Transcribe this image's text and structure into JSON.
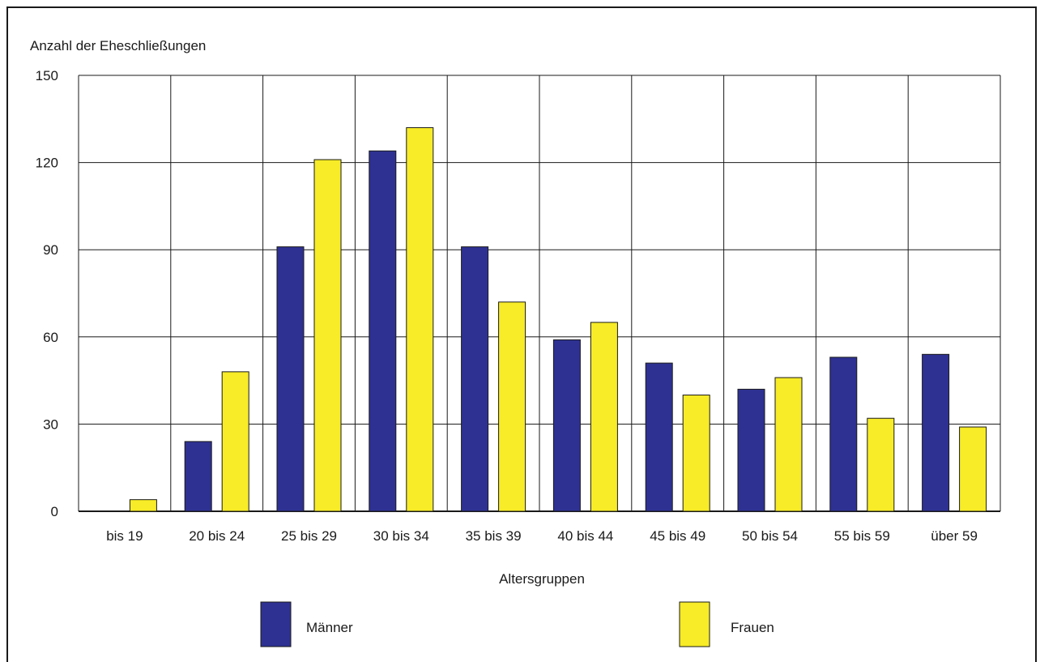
{
  "chart_data": {
    "type": "bar",
    "title": "",
    "ylabel": "Anzahl der Eheschließungen",
    "xlabel": "Altersgruppen",
    "ylim": [
      0,
      150
    ],
    "yticks": [
      0,
      30,
      60,
      90,
      120,
      150
    ],
    "grid": true,
    "legend_position": "bottom",
    "categories": [
      "bis 19",
      "20 bis 24",
      "25 bis 29",
      "30 bis 34",
      "35 bis 39",
      "40 bis 44",
      "45 bis 49",
      "50 bis 54",
      "55 bis 59",
      "über 59"
    ],
    "series": [
      {
        "name": "Männer",
        "color": "#2e3192",
        "values": [
          0,
          24,
          91,
          124,
          91,
          59,
          51,
          42,
          53,
          54
        ]
      },
      {
        "name": "Frauen",
        "color": "#f7ec27",
        "values": [
          4,
          48,
          121,
          132,
          72,
          65,
          40,
          46,
          32,
          29
        ]
      }
    ]
  }
}
